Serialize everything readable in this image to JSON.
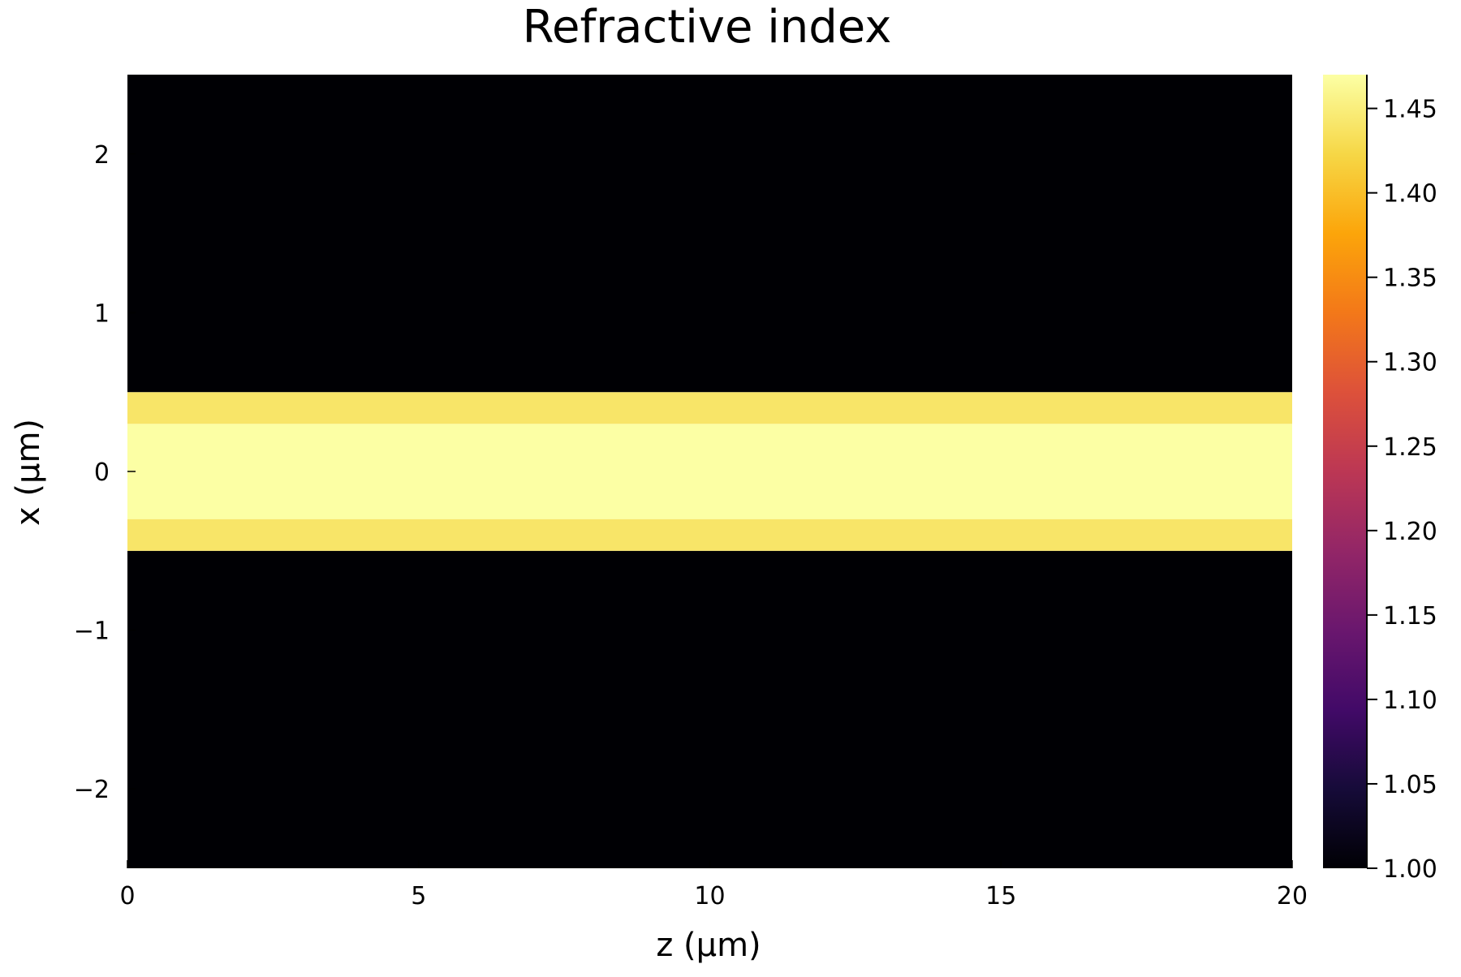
{
  "chart_data": {
    "type": "heatmap",
    "title": "Refractive index",
    "xlabel": "z (µm)",
    "ylabel": "x (µm)",
    "xlim": [
      0,
      20
    ],
    "ylim": [
      -2.5,
      2.5
    ],
    "x_ticks": [
      0,
      5,
      10,
      15,
      20
    ],
    "x_tick_labels": [
      "0",
      "5",
      "10",
      "15",
      "20"
    ],
    "y_ticks": [
      -2,
      -1,
      0,
      1,
      2
    ],
    "y_tick_labels": [
      "−2",
      "−1",
      "0",
      "1",
      "2"
    ],
    "grid": false,
    "colormap": "inferno",
    "color_range": [
      1.0,
      1.47
    ],
    "colorbar_ticks": [
      1.0,
      1.05,
      1.1,
      1.15,
      1.2,
      1.25,
      1.3,
      1.35,
      1.4,
      1.45
    ],
    "colorbar_tick_labels": [
      "1.00",
      "1.05",
      "1.10",
      "1.15",
      "1.20",
      "1.25",
      "1.30",
      "1.35",
      "1.40",
      "1.45"
    ],
    "regions": [
      {
        "x_from": -2.5,
        "x_to": -0.5,
        "z_from": 0,
        "z_to": 20,
        "n": 1.0
      },
      {
        "x_from": -0.5,
        "x_to": -0.3,
        "z_from": 0,
        "z_to": 20,
        "n": 1.44
      },
      {
        "x_from": -0.3,
        "x_to": 0.3,
        "z_from": 0,
        "z_to": 20,
        "n": 1.47
      },
      {
        "x_from": 0.3,
        "x_to": 0.5,
        "z_from": 0,
        "z_to": 20,
        "n": 1.44
      },
      {
        "x_from": 0.5,
        "x_to": 2.5,
        "z_from": 0,
        "z_to": 20,
        "n": 1.0
      }
    ]
  }
}
